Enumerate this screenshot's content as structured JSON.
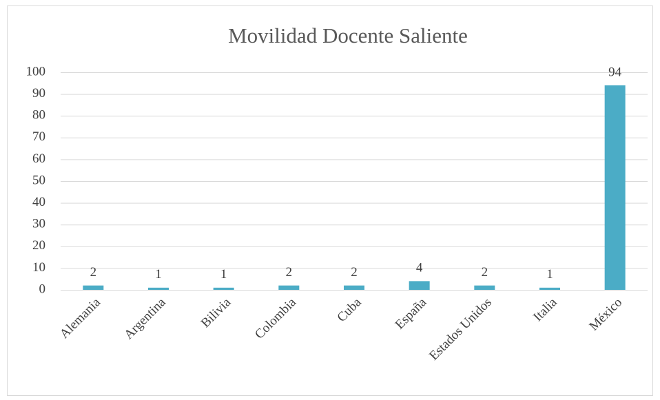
{
  "chart_data": {
    "type": "bar",
    "title": "Movilidad Docente Saliente",
    "categories": [
      "Alemania",
      "Argentina",
      "Bilivia",
      "Colombia",
      "Cuba",
      "España",
      "Estados Unidos",
      "Italia",
      "México"
    ],
    "values": [
      2,
      1,
      1,
      2,
      2,
      4,
      2,
      1,
      94
    ],
    "color": "#4bacc6",
    "ylim": [
      0,
      100
    ],
    "yticks": [
      0,
      10,
      20,
      30,
      40,
      50,
      60,
      70,
      80,
      90,
      100
    ],
    "grid": true,
    "data_labels": true
  }
}
